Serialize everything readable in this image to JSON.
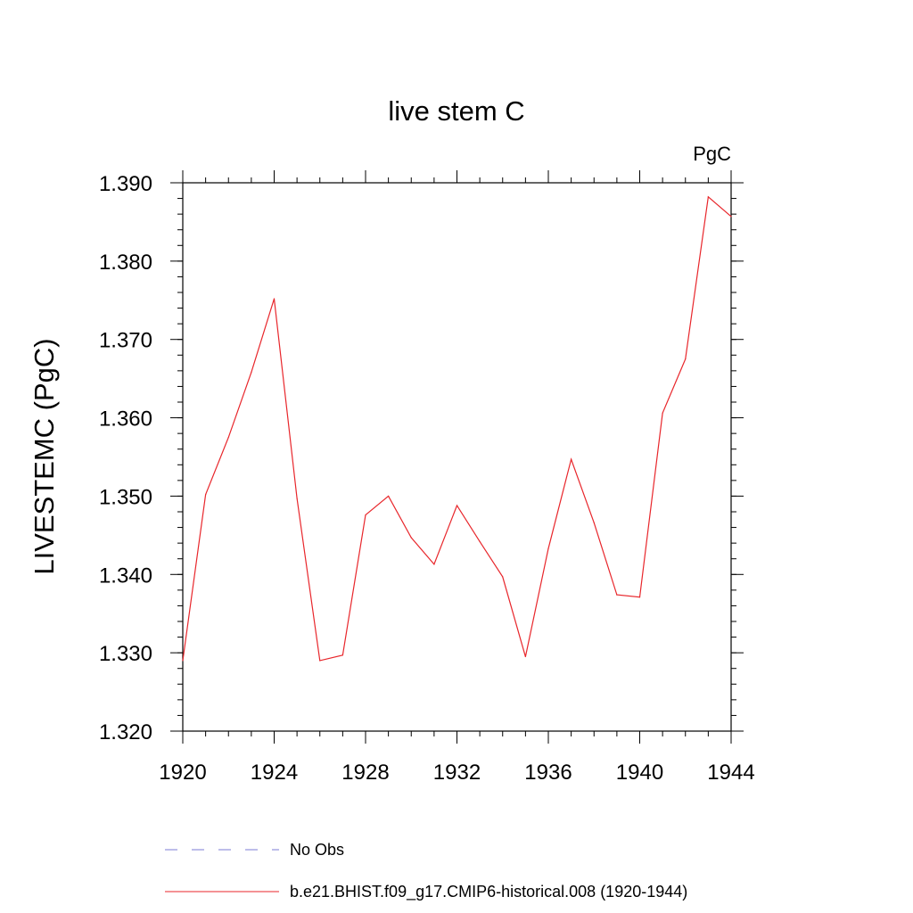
{
  "chart_data": {
    "type": "line",
    "title": "live stem C",
    "units_label": "PgC",
    "ylabel": "LIVESTEMC  (PgC)",
    "xlabel": "",
    "xlim": [
      1920,
      1944
    ],
    "ylim": [
      1.32,
      1.39
    ],
    "x_ticks": [
      1920,
      1924,
      1928,
      1932,
      1936,
      1940,
      1944
    ],
    "y_ticks": [
      "1.320",
      "1.330",
      "1.340",
      "1.350",
      "1.360",
      "1.370",
      "1.380",
      "1.390"
    ],
    "grid": false,
    "legend_position": "bottom",
    "series": [
      {
        "name": "b.e21.BHIST.f09_g17.CMIP6-historical.008 (1920-1944)",
        "color": "#e8262b",
        "style": "solid",
        "x": [
          1920,
          1921,
          1922,
          1923,
          1924,
          1925,
          1926,
          1927,
          1928,
          1929,
          1930,
          1931,
          1932,
          1933,
          1934,
          1935,
          1936,
          1937,
          1938,
          1939,
          1940,
          1941,
          1942,
          1943,
          1944
        ],
        "values": [
          1.329,
          1.3502,
          1.3575,
          1.3658,
          1.3752,
          1.3497,
          1.329,
          1.3297,
          1.3476,
          1.35,
          1.3447,
          1.3413,
          1.3488,
          1.3442,
          1.3397,
          1.3295,
          1.3433,
          1.3547,
          1.3466,
          1.3374,
          1.3371,
          1.3606,
          1.3675,
          1.3882,
          1.3857
        ]
      },
      {
        "name": "No Obs",
        "color": "#7b7bd6",
        "style": "dashed",
        "x": [],
        "values": []
      }
    ]
  }
}
